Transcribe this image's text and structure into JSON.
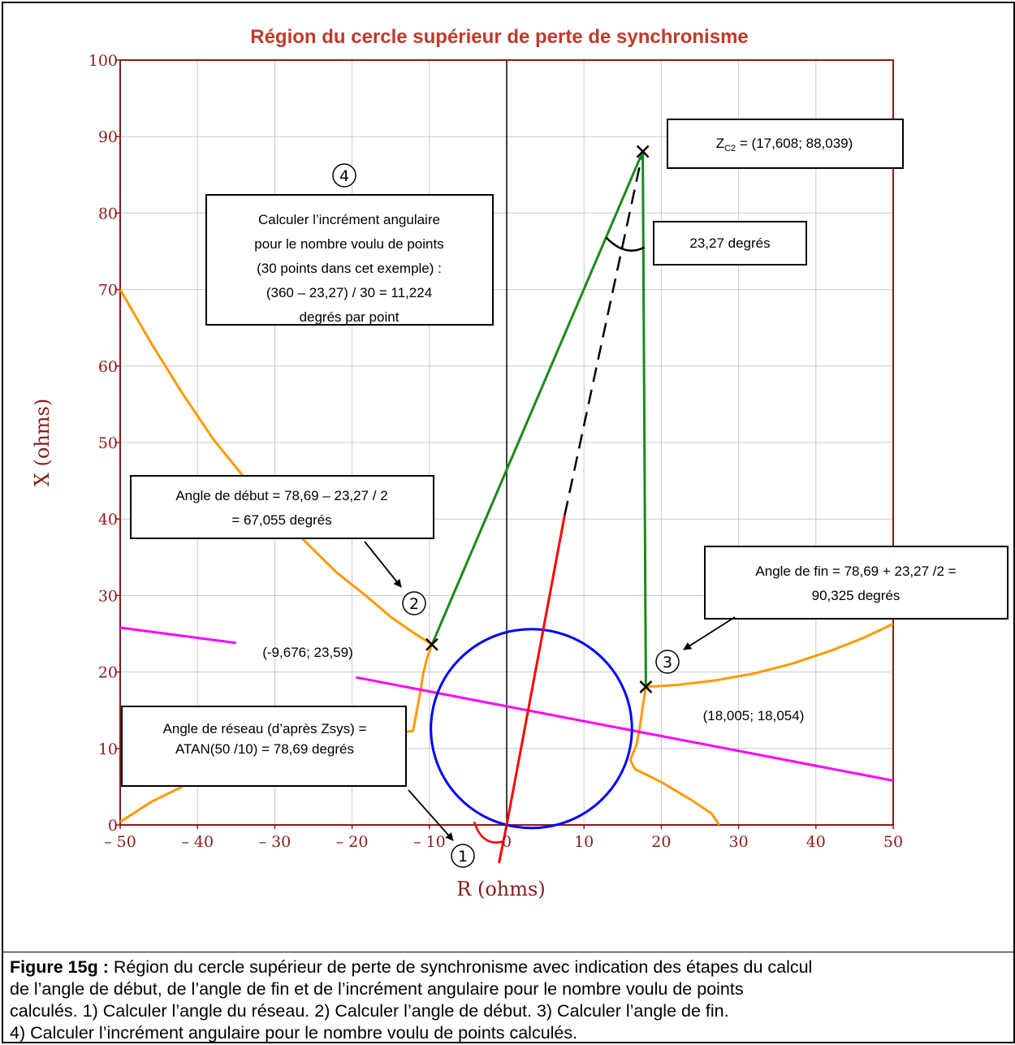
{
  "chart_data": {
    "type": "scatter",
    "title": "Région du cercle supérieur de perte de synchronisme",
    "xlabel": "R (ohms)",
    "ylabel": "X (ohms)",
    "xlim": [
      -50,
      50
    ],
    "ylim": [
      0,
      100
    ],
    "x_ticks": [
      -50,
      -40,
      -30,
      -20,
      -10,
      0,
      10,
      20,
      30,
      40,
      50
    ],
    "x_tick_labels": [
      "– 50",
      "– 40",
      "– 30",
      "– 20",
      "– 10",
      "0",
      "10",
      "20",
      "30",
      "40",
      "50"
    ],
    "y_ticks": [
      0,
      10,
      20,
      30,
      40,
      50,
      60,
      70,
      80,
      90,
      100
    ],
    "y_tick_labels": [
      "0",
      "10",
      "20",
      "30",
      "40",
      "50",
      "60",
      "70",
      "80",
      "90",
      "100"
    ],
    "grid": true,
    "colors": {
      "frame": "#8b1a1a",
      "title": "#c0392b",
      "grid": "#c8c8c8",
      "orange": "#ff9900",
      "magenta": "#ff00ff",
      "blue": "#0000ff",
      "red": "#ff0000",
      "green": "#1a8a1a",
      "black": "#000000"
    },
    "points": {
      "zc2": {
        "x": 17.608,
        "y": 88.039
      },
      "start": {
        "x": -9.676,
        "y": 23.59
      },
      "end": {
        "x": 18.005,
        "y": 18.054
      }
    },
    "blue_circle": {
      "cx": 3.2,
      "cy": 12.6,
      "r": 13.0
    },
    "red_line": [
      [
        0,
        0
      ],
      [
        7.5,
        40.5
      ]
    ],
    "dashed_line": [
      [
        7.5,
        40.5
      ],
      [
        17.608,
        88.039
      ]
    ],
    "red_stub": [
      [
        0,
        0
      ],
      [
        -1,
        -5
      ]
    ],
    "magenta_lines": [
      [
        [
          -50,
          25.8
        ],
        [
          -35,
          23.8
        ]
      ],
      [
        [
          -19.5,
          19.3
        ],
        [
          50,
          5.8
        ]
      ]
    ],
    "orange_curves": [
      [
        [
          -50,
          70
        ],
        [
          -46,
          63
        ],
        [
          -42,
          56.5
        ],
        [
          -38,
          50.5
        ],
        [
          -34,
          45.5
        ],
        [
          -30,
          41.2
        ],
        [
          -26,
          37
        ],
        [
          -22,
          33
        ],
        [
          -18,
          29.8
        ],
        [
          -15,
          27.2
        ],
        [
          -12,
          25.1
        ],
        [
          -9.676,
          23.59
        ]
      ],
      [
        [
          -9.676,
          23.59
        ],
        [
          -10.3,
          21.8
        ],
        [
          -10.8,
          19.8
        ],
        [
          -11.2,
          17.2
        ],
        [
          -11.7,
          14.5
        ],
        [
          -12.1,
          12.3
        ],
        [
          -13.5,
          12.1
        ]
      ],
      [
        [
          -50,
          0.4
        ],
        [
          -46,
          3
        ],
        [
          -42,
          5
        ]
      ],
      [
        [
          18.005,
          18.054
        ],
        [
          22,
          18.3
        ],
        [
          27,
          18.9
        ],
        [
          32,
          19.8
        ],
        [
          37,
          21.1
        ],
        [
          42,
          22.8
        ],
        [
          46,
          24.4
        ],
        [
          50,
          26.3
        ]
      ],
      [
        [
          18.005,
          18.054
        ],
        [
          17.6,
          15.5
        ],
        [
          17.2,
          12.6
        ],
        [
          16.8,
          10.5
        ],
        [
          16,
          8.5
        ],
        [
          16.6,
          7.3
        ],
        [
          20,
          5.6
        ],
        [
          24,
          3.2
        ],
        [
          26.5,
          1.5
        ],
        [
          27.5,
          0
        ]
      ]
    ],
    "green_lines": [
      [
        [
          -9.676,
          23.59
        ],
        [
          17.608,
          88.039
        ]
      ],
      [
        [
          17.608,
          88.039
        ],
        [
          18.005,
          18.054
        ]
      ]
    ],
    "x_marks": [
      {
        "x": 17.608,
        "y": 88.039
      },
      {
        "x": -9.676,
        "y": 23.59
      },
      {
        "x": 18.005,
        "y": 18.054
      }
    ],
    "annotations": {
      "zc2": {
        "main": "Z",
        "sub": "C2",
        "rest": " = (17,608; 88,039)"
      },
      "angle_label": "23,27 degrés",
      "step4": [
        "Calculer l’incrément angulaire",
        "pour le nombre voulu de points",
        "(30 points dans cet exemple) :",
        "(360 – 23,27) / 30 = 11,224",
        "degrés par point"
      ],
      "step2": [
        "Angle de début = 78,69 – 23,27 / 2",
        "= 67,055 degrés"
      ],
      "step3": [
        "Angle de fin = 78,69 + 23,27 /2 =",
        "90,325 degrés"
      ],
      "step1": [
        "Angle de réseau (d’après Zsys) =",
        "ATAN(50 /10) = 78,69 degrés"
      ],
      "start_coords": "(-9,676; 23,59)",
      "end_coords": "(18,005; 18,054)",
      "circled": [
        "1",
        "2",
        "3",
        "4"
      ]
    }
  },
  "caption": {
    "label": "Figure 15g :",
    "lines": [
      " Région du cercle supérieur de perte de synchronisme avec indication des étapes du calcul",
      "de l’angle de début, de l’angle de fin et de l’incrément angulaire pour le nombre voulu de points",
      "calculés. 1) Calculer l’angle du réseau. 2) Calculer l’angle de début. 3) Calculer l’angle de fin.",
      "4) Calculer l’incrément angulaire pour le nombre voulu de points calculés."
    ]
  }
}
